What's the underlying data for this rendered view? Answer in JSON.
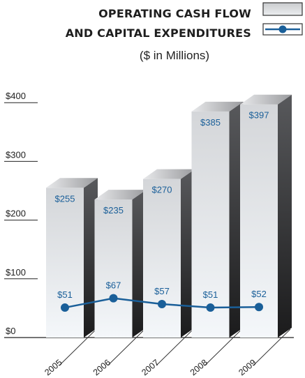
{
  "title_line1": "OPERATING CASH FLOW",
  "title_line2": "AND CAPITAL EXPENDITURES",
  "subtitle": "($ in Millions)",
  "colors": {
    "capex_line": "#1a5f99",
    "bar_front_top": "#d4d6d9",
    "bar_front_bottom": "#f4f7fa",
    "bar_side_top": "#58595c",
    "bar_side_bottom": "#1b1b1c"
  },
  "chart_data": {
    "type": "bar",
    "categories": [
      "2005",
      "2006",
      "2007",
      "2008",
      "2009"
    ],
    "series": [
      {
        "kind": "bar",
        "values": [
          255,
          235,
          270,
          385,
          397
        ],
        "labels": [
          "$255",
          "$235",
          "$270",
          "$385",
          "$397"
        ]
      },
      {
        "kind": "line",
        "values": [
          51,
          67,
          57,
          51,
          52
        ],
        "labels": [
          "$51",
          "$67",
          "$57",
          "$51",
          "$52"
        ]
      }
    ],
    "yticks": [
      0,
      100,
      200,
      300,
      400
    ],
    "ytick_labels": [
      "$0",
      "$100",
      "$200",
      "$300",
      "$400"
    ],
    "ylim": [
      0,
      400
    ],
    "legend_position": "top-right",
    "grid": false
  }
}
